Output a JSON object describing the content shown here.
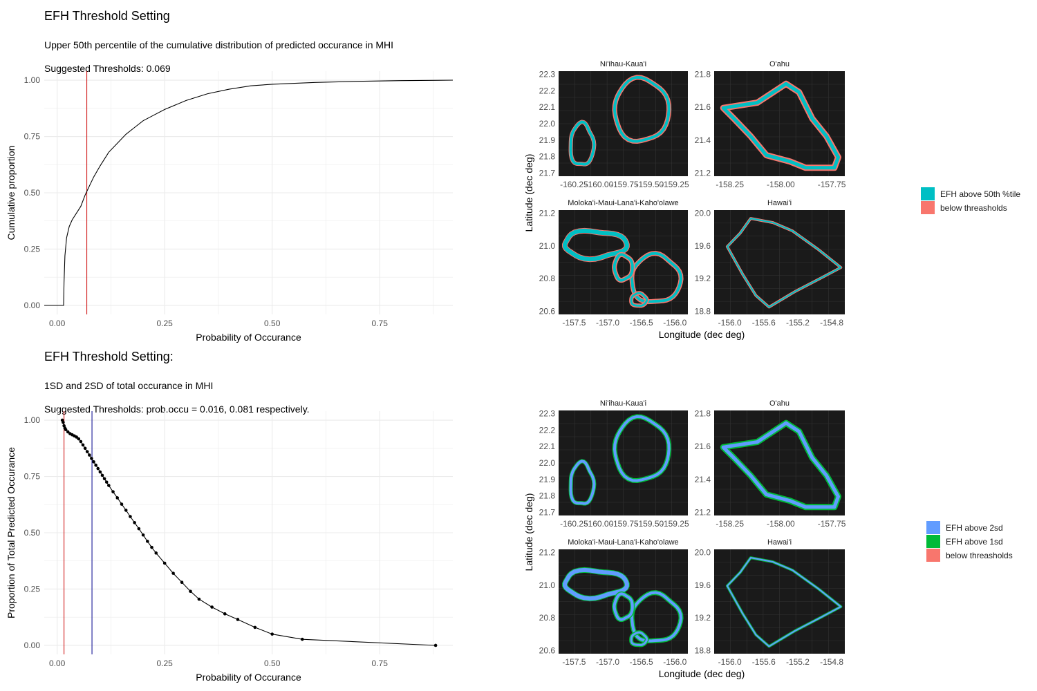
{
  "sections": [
    {
      "title": "EFH Threshold Setting",
      "subtitle_line1": "Upper 50th percentile of the cumulative distribution of predicted occurance in MHI",
      "subtitle_line2": "Suggested Thresholds: 0.069"
    },
    {
      "title": "EFH Threshold Setting:",
      "subtitle_line1": "1SD and 2SD of total occurance in MHI",
      "subtitle_line2": "Suggested Thresholds: prob.occu =  0.016, 0.081 respectively."
    }
  ],
  "colors": {
    "panel_bg": "#1a1a1a",
    "teal": "#00bfc4",
    "salmon": "#f8766d",
    "blue": "#619cff",
    "green": "#00ba38",
    "threshold_red": "#cc0000",
    "threshold_blue": "#00008b"
  },
  "chart_data": [
    {
      "type": "line",
      "title": "",
      "xlabel": "Probability of Occurance",
      "ylabel": "Cumulative proportion",
      "xlim": [
        -0.03,
        0.92
      ],
      "ylim": [
        -0.04,
        1.04
      ],
      "x_ticks": [
        "0.00",
        "0.25",
        "0.50",
        "0.75"
      ],
      "y_ticks": [
        "0.00",
        "0.25",
        "0.50",
        "0.75",
        "1.00"
      ],
      "grid": true,
      "vline": 0.069,
      "series": [
        {
          "x": [
            -0.03,
            0.015,
            0.016,
            0.018,
            0.022,
            0.028,
            0.035,
            0.045,
            0.055,
            0.065,
            0.075,
            0.085,
            0.1,
            0.12,
            0.14,
            0.16,
            0.18,
            0.2,
            0.22,
            0.25,
            0.3,
            0.35,
            0.4,
            0.45,
            0.5,
            0.6,
            0.7,
            0.8,
            0.92
          ],
          "y": [
            0.0,
            0.0,
            0.1,
            0.22,
            0.3,
            0.35,
            0.38,
            0.41,
            0.44,
            0.49,
            0.53,
            0.57,
            0.62,
            0.68,
            0.72,
            0.76,
            0.79,
            0.82,
            0.84,
            0.87,
            0.91,
            0.94,
            0.96,
            0.975,
            0.982,
            0.99,
            0.995,
            0.998,
            1.0
          ]
        }
      ]
    },
    {
      "type": "line",
      "title": "",
      "xlabel": "Probability of Occurance",
      "ylabel": "Proportion of Total Predicted Occurance",
      "xlim": [
        -0.03,
        0.92
      ],
      "ylim": [
        -0.04,
        1.04
      ],
      "x_ticks": [
        "0.00",
        "0.25",
        "0.50",
        "0.75"
      ],
      "y_ticks": [
        "0.00",
        "0.25",
        "0.50",
        "0.75",
        "1.00"
      ],
      "grid": true,
      "vlines": [
        0.016,
        0.081
      ],
      "series": [
        {
          "x": [
            0.012,
            0.014,
            0.016,
            0.018,
            0.02,
            0.025,
            0.03,
            0.035,
            0.04,
            0.045,
            0.05,
            0.055,
            0.06,
            0.065,
            0.07,
            0.075,
            0.08,
            0.085,
            0.09,
            0.095,
            0.1,
            0.105,
            0.11,
            0.115,
            0.12,
            0.13,
            0.14,
            0.15,
            0.16,
            0.17,
            0.18,
            0.19,
            0.2,
            0.21,
            0.22,
            0.23,
            0.25,
            0.27,
            0.29,
            0.31,
            0.33,
            0.36,
            0.39,
            0.42,
            0.46,
            0.5,
            0.57,
            0.88
          ],
          "y": [
            1.0,
            0.99,
            0.975,
            0.965,
            0.958,
            0.948,
            0.94,
            0.935,
            0.93,
            0.925,
            0.917,
            0.905,
            0.89,
            0.875,
            0.86,
            0.845,
            0.83,
            0.815,
            0.8,
            0.785,
            0.77,
            0.755,
            0.74,
            0.725,
            0.71,
            0.682,
            0.655,
            0.627,
            0.6,
            0.572,
            0.545,
            0.518,
            0.49,
            0.462,
            0.435,
            0.41,
            0.365,
            0.32,
            0.28,
            0.24,
            0.205,
            0.17,
            0.14,
            0.115,
            0.08,
            0.05,
            0.027,
            0.0
          ]
        }
      ]
    },
    {
      "type": "heatmap",
      "xlabel": "Longitude (dec deg)",
      "ylabel": "Latitude (dec deg)",
      "panels": [
        {
          "title": "Ni'ihau-Kaua'i",
          "x_ticks": [
            "-160.25",
            "-160.00",
            "-159.75",
            "-159.50",
            "-159.25"
          ],
          "y_ticks": [
            "21.7",
            "21.8",
            "21.9",
            "22.0",
            "22.1",
            "22.2",
            "22.3"
          ]
        },
        {
          "title": "O'ahu",
          "x_ticks": [
            "-158.25",
            "-158.00",
            "-157.75"
          ],
          "y_ticks": [
            "21.2",
            "21.4",
            "21.6",
            "21.8"
          ]
        },
        {
          "title": "Moloka'i-Maui-Lana'i-Kaho'olawe",
          "x_ticks": [
            "-157.5",
            "-157.0",
            "-156.5",
            "-156.0"
          ],
          "y_ticks": [
            "20.6",
            "20.8",
            "21.0",
            "21.2"
          ]
        },
        {
          "title": "Hawai'i",
          "x_ticks": [
            "-156.0",
            "-155.6",
            "-155.2",
            "-154.8"
          ],
          "y_ticks": [
            "18.8",
            "19.2",
            "19.6",
            "20.0"
          ]
        }
      ],
      "legend": [
        {
          "label": "EFH above 50th %tile",
          "color": "#00bfc4"
        },
        {
          "label": "below threasholds",
          "color": "#f8766d"
        }
      ],
      "legend_position": "right"
    },
    {
      "type": "heatmap",
      "xlabel": "Longitude (dec deg)",
      "ylabel": "Latitude (dec deg)",
      "panels": [
        {
          "title": "Ni'ihau-Kaua'i",
          "x_ticks": [
            "-160.25",
            "-160.00",
            "-159.75",
            "-159.50",
            "-159.25"
          ],
          "y_ticks": [
            "21.7",
            "21.8",
            "21.9",
            "22.0",
            "22.1",
            "22.2",
            "22.3"
          ]
        },
        {
          "title": "O'ahu",
          "x_ticks": [
            "-158.25",
            "-158.00",
            "-157.75"
          ],
          "y_ticks": [
            "21.2",
            "21.4",
            "21.6",
            "21.8"
          ]
        },
        {
          "title": "Moloka'i-Maui-Lana'i-Kaho'olawe",
          "x_ticks": [
            "-157.5",
            "-157.0",
            "-156.5",
            "-156.0"
          ],
          "y_ticks": [
            "20.6",
            "20.8",
            "21.0",
            "21.2"
          ]
        },
        {
          "title": "Hawai'i",
          "x_ticks": [
            "-156.0",
            "-155.6",
            "-155.2",
            "-154.8"
          ],
          "y_ticks": [
            "18.8",
            "19.2",
            "19.6",
            "20.0"
          ]
        }
      ],
      "legend": [
        {
          "label": "EFH above 2sd",
          "color": "#619cff"
        },
        {
          "label": "EFH above 1sd",
          "color": "#00ba38"
        },
        {
          "label": "below threasholds",
          "color": "#f8766d"
        }
      ],
      "legend_position": "right"
    }
  ]
}
